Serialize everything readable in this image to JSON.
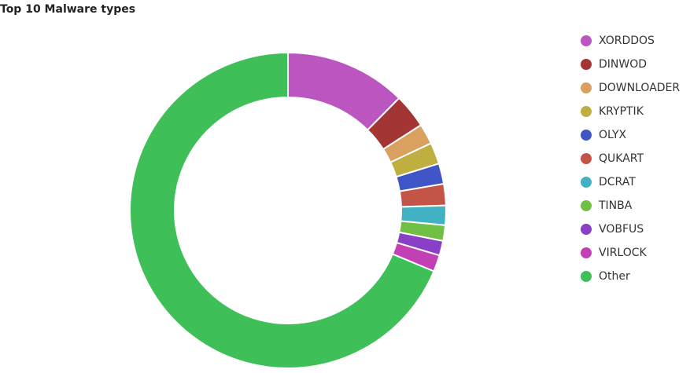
{
  "chart_data": {
    "type": "pie",
    "title": "Top 10 Malware types",
    "donut": true,
    "categories": [
      "XORDDOS",
      "DINWOD",
      "DOWNLOADER",
      "KRYPTIK",
      "OLYX",
      "QUKART",
      "DCRAT",
      "TINBA",
      "VOBFUS",
      "VIRLOCK",
      "Other"
    ],
    "values": [
      12.4,
      3.5,
      2.1,
      2.2,
      2.1,
      2.2,
      2.0,
      1.6,
      1.5,
      1.7,
      68.7
    ],
    "colors": [
      "#bb55c0",
      "#a33535",
      "#d9a060",
      "#bfae40",
      "#4055c6",
      "#c55448",
      "#41b1c4",
      "#72bf45",
      "#8a3fc7",
      "#c33fb4",
      "#3fbf57"
    ]
  }
}
